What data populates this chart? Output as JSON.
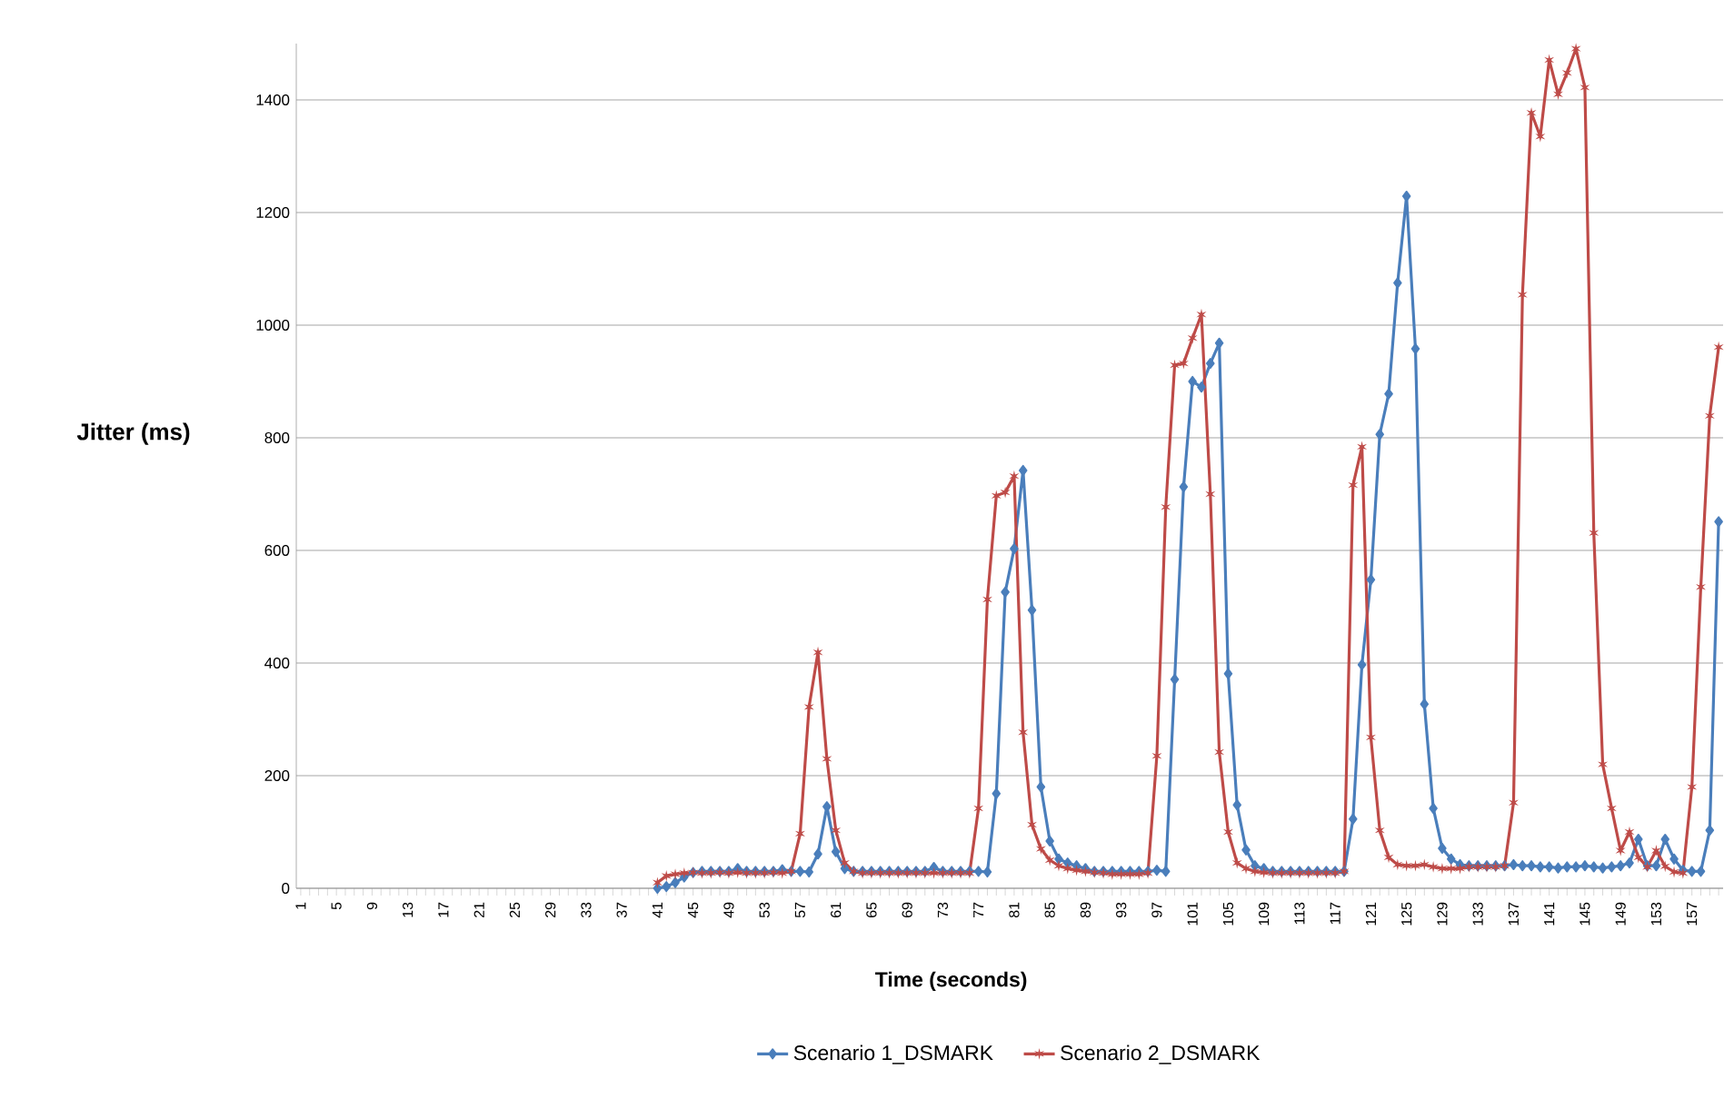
{
  "chart_data": {
    "type": "line",
    "xlabel": "Time (seconds)",
    "ylabel": "Jitter (ms)",
    "categories": [
      "1",
      null,
      null,
      null,
      "5",
      null,
      null,
      null,
      "9",
      null,
      null,
      null,
      "13",
      null,
      null,
      null,
      "17",
      null,
      null,
      null,
      "21",
      null,
      null,
      null,
      "25",
      null,
      null,
      null,
      "29",
      null,
      null,
      null,
      "33",
      null,
      null,
      null,
      "37",
      null,
      null,
      null,
      "41",
      null,
      null,
      null,
      "45",
      null,
      null,
      null,
      "49",
      null,
      null,
      null,
      "53",
      null,
      null,
      null,
      "57",
      null,
      null,
      null,
      "61",
      null,
      null,
      null,
      "65",
      null,
      null,
      null,
      "69",
      null,
      null,
      null,
      "73",
      null,
      null,
      null,
      "77",
      null,
      null,
      null,
      "81",
      null,
      null,
      null,
      "85",
      null,
      null,
      null,
      "89",
      null,
      null,
      null,
      "93",
      null,
      null,
      null,
      "97",
      null,
      null,
      null,
      "101",
      null,
      null,
      null,
      "105",
      null,
      null,
      null,
      "109",
      null,
      null,
      null,
      "113",
      null,
      null,
      null,
      "117",
      null,
      null,
      null,
      "121",
      null,
      null,
      null,
      "125",
      null,
      null,
      null,
      "129",
      null,
      null,
      null,
      "133",
      null,
      null,
      null,
      "137",
      null,
      null,
      null,
      "141",
      null,
      null,
      null,
      "145",
      null,
      null,
      null,
      "149",
      null,
      null,
      null,
      "153",
      null,
      null,
      null,
      "157",
      null,
      null,
      null
    ],
    "series": [
      {
        "name": "Scenario 1_DSMARK",
        "color": "#4a7ebb",
        "marker": "diamond",
        "values": [
          null,
          null,
          null,
          null,
          null,
          null,
          null,
          null,
          null,
          null,
          null,
          null,
          null,
          null,
          null,
          null,
          null,
          null,
          null,
          null,
          null,
          null,
          null,
          null,
          null,
          null,
          null,
          null,
          null,
          null,
          null,
          null,
          null,
          null,
          null,
          null,
          null,
          null,
          null,
          null,
          0,
          3,
          10,
          20,
          28,
          30,
          30,
          30,
          30,
          35,
          30,
          30,
          30,
          30,
          33,
          30,
          30,
          29,
          61,
          145,
          65,
          35,
          30,
          30,
          30,
          30,
          30,
          30,
          30,
          30,
          30,
          37,
          30,
          30,
          30,
          30,
          30,
          29,
          168,
          526,
          603,
          742,
          494,
          180,
          84,
          52,
          45,
          40,
          35,
          30,
          30,
          30,
          30,
          30,
          30,
          30,
          32,
          30,
          371,
          713,
          900,
          890,
          932,
          968,
          381,
          148,
          68,
          40,
          35,
          30,
          30,
          30,
          30,
          30,
          30,
          30,
          30,
          30,
          123,
          397,
          548,
          806,
          878,
          1075,
          1229,
          958,
          327,
          142,
          71,
          52,
          42,
          40,
          40,
          40,
          40,
          40,
          42,
          40,
          40,
          38,
          38,
          36,
          38,
          38,
          40,
          38,
          36,
          38,
          40,
          45,
          87,
          40,
          40,
          87,
          52,
          32,
          30,
          30,
          103,
          651
        ]
      },
      {
        "name": "Scenario 2_DSMARK",
        "color": "#be4b48",
        "marker": "cross",
        "values": [
          null,
          null,
          null,
          null,
          null,
          null,
          null,
          null,
          null,
          null,
          null,
          null,
          null,
          null,
          null,
          null,
          null,
          null,
          null,
          null,
          null,
          null,
          null,
          null,
          null,
          null,
          null,
          null,
          null,
          null,
          null,
          null,
          null,
          null,
          null,
          null,
          null,
          null,
          null,
          null,
          10,
          22,
          25,
          27,
          28,
          27,
          27,
          28,
          27,
          28,
          27,
          27,
          27,
          28,
          27,
          30,
          97,
          322,
          419,
          230,
          103,
          45,
          30,
          27,
          27,
          27,
          27,
          27,
          27,
          27,
          27,
          27,
          27,
          27,
          27,
          27,
          142,
          513,
          697,
          703,
          732,
          277,
          113,
          70,
          50,
          40,
          35,
          32,
          30,
          28,
          27,
          25,
          25,
          25,
          25,
          27,
          235,
          677,
          929,
          932,
          977,
          1019,
          700,
          242,
          100,
          45,
          35,
          30,
          28,
          27,
          27,
          27,
          27,
          27,
          27,
          27,
          27,
          30,
          716,
          784,
          268,
          103,
          55,
          42,
          40,
          40,
          42,
          38,
          35,
          35,
          35,
          38,
          38,
          38,
          38,
          40,
          152,
          1054,
          1377,
          1335,
          1471,
          1410,
          1448,
          1491,
          1422,
          631,
          220,
          142,
          67,
          100,
          55,
          38,
          67,
          39,
          29,
          27,
          180,
          535,
          839,
          961
        ]
      }
    ],
    "ylim": [
      0,
      1500
    ],
    "yticks": [
      0,
      200,
      400,
      600,
      800,
      1000,
      1200,
      1400
    ],
    "grid": "y",
    "legend": "bottom",
    "line_style": "solid"
  }
}
